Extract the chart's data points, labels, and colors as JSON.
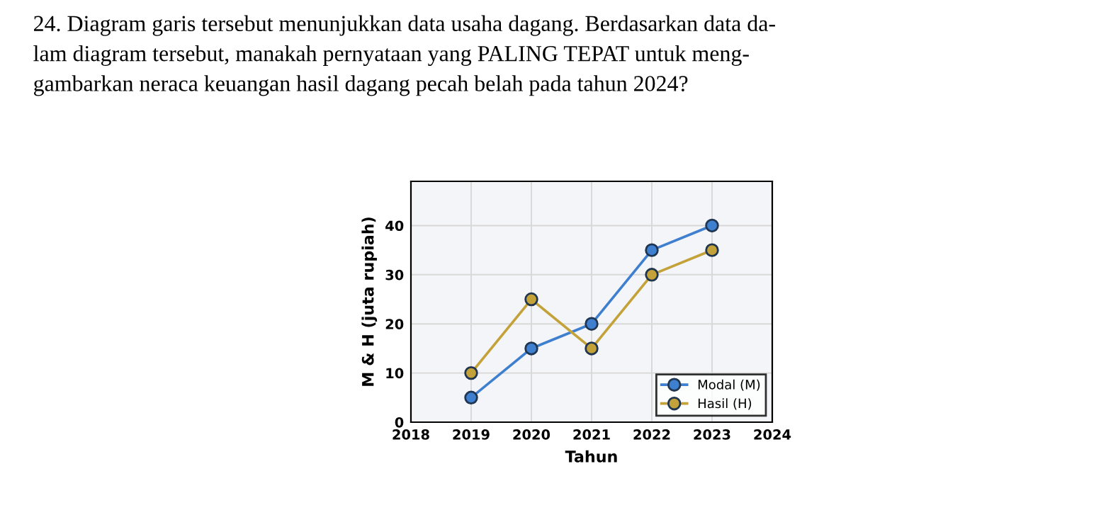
{
  "chart_data": {
    "type": "line",
    "title": "24. Diagram garis tersebut menunjukkan data usaha dagang. Berdasarkan data da-\nlam diagram tersebut, manakah pernyataan yang PALING TEPAT untuk meng-\ngambarkan neraca keuangan hasil dagang pecah belah pada tahun 2024?",
    "xlabel": "Tahun",
    "ylabel": "M & H (juta rupiah)",
    "x": [
      2019,
      2020,
      2021,
      2022,
      2023
    ],
    "series": [
      {
        "name": "Modal (M)",
        "color": "#3f7fcf",
        "values": [
          5,
          15,
          20,
          35,
          40
        ]
      },
      {
        "name": "Hasil (H)",
        "color": "#c4a23a",
        "values": [
          10,
          25,
          15,
          30,
          35
        ]
      }
    ],
    "xlim": [
      2018,
      2024
    ],
    "xticks": [
      2018,
      2019,
      2020,
      2021,
      2022,
      2023,
      2024
    ],
    "ylim": [
      0,
      49
    ],
    "yticks": [
      0,
      10,
      20,
      30,
      40
    ],
    "grid": true,
    "legend": "bottom right",
    "marker": "circle",
    "line_style": "solid"
  }
}
